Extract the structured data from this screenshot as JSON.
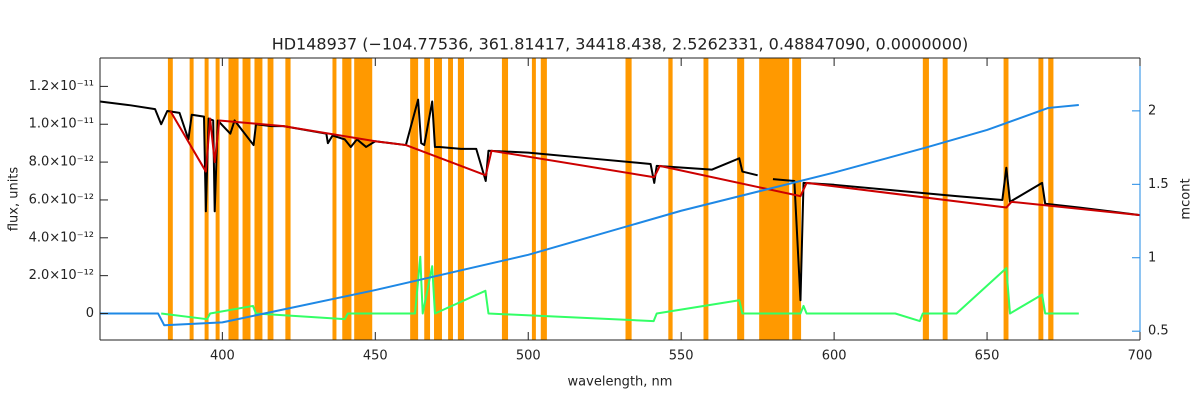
{
  "chart_data": {
    "type": "line",
    "title": "HD148937    (−104.77536, 361.81417, 34418.438, 2.5262331, 0.48847090, 0.0000000)",
    "x_label": "wavelength, nm",
    "y_label": "flux, units",
    "y2_label": "mcont",
    "xlim": [
      360,
      700
    ],
    "xticks": [
      400,
      450,
      500,
      550,
      600,
      650,
      700
    ],
    "ylim": [
      -1.4e-12,
      1.35e-11
    ],
    "yticks": [
      0,
      {
        "value": 2e-12,
        "label": "2.0×10⁻¹²"
      },
      {
        "value": 4e-12,
        "label": "4.0×10⁻¹²"
      },
      {
        "value": 6e-12,
        "label": "6.0×10⁻¹²"
      },
      {
        "value": 8e-12,
        "label": "8.0×10⁻¹²"
      },
      {
        "value": 1e-11,
        "label": "1.0×10⁻¹¹"
      },
      {
        "value": 1.2e-11,
        "label": "1.2×10⁻¹¹"
      }
    ],
    "y2lim": [
      0.44,
      2.36
    ],
    "y2ticks": [
      0.5,
      1.0,
      1.5,
      2.0
    ],
    "y2_color": "#1e88e5",
    "mask_color": "#ff9900",
    "mask_regions": [
      [
        382.2,
        383.8
      ],
      [
        389.3,
        390.6
      ],
      [
        394.2,
        395.5
      ],
      [
        397.8,
        399.1
      ],
      [
        402,
        405.3
      ],
      [
        406.6,
        409.2
      ],
      [
        410.5,
        413.1
      ],
      [
        414.8,
        416.7
      ],
      [
        420.6,
        422.3
      ],
      [
        436,
        437.3
      ],
      [
        439.2,
        442.2
      ],
      [
        443.1,
        449
      ],
      [
        461.4,
        464
      ],
      [
        466,
        467.9
      ],
      [
        469.2,
        471.8
      ],
      [
        473.8,
        475.4
      ],
      [
        477,
        479
      ],
      [
        491.4,
        493.4
      ],
      [
        501.2,
        502.5
      ],
      [
        504.1,
        506.1
      ],
      [
        531.8,
        533.8
      ],
      [
        545.8,
        547.2
      ],
      [
        557.3,
        558.9
      ],
      [
        568.3,
        570.6
      ],
      [
        575.5,
        585.3
      ],
      [
        586.3,
        589.2
      ],
      [
        629,
        631
      ],
      [
        635.5,
        637.1
      ],
      [
        655.4,
        657
      ],
      [
        666.8,
        668.4
      ],
      [
        670,
        671.7
      ]
    ],
    "series": [
      {
        "color": "#000000",
        "x": [
          360,
          370,
          378,
          380,
          382,
          386,
          388.9,
          390,
          394,
          394.6,
          395.5,
          397,
          397.5,
          398.5,
          402.6,
          404,
          410.2,
          411,
          416,
          420,
          427,
          434,
          434.5,
          436,
          440,
          442,
          444,
          447,
          450,
          455,
          460,
          464,
          465,
          466,
          468.6,
          469.5,
          471,
          478,
          483,
          486.1,
          487,
          500,
          520,
          540,
          541.2,
          542,
          560,
          569,
          570,
          575,
          576,
          580,
          587,
          589,
          590,
          600,
          620,
          640,
          655,
          656.3,
          657.5,
          668,
          669,
          680,
          690,
          700
        ],
        "values": [
          1.12e-11,
          1.1e-11,
          1.08e-11,
          1e-11,
          1.07e-11,
          1.06e-11,
          9.2e-12,
          1.05e-11,
          1.04e-11,
          5.4e-12,
          1.03e-11,
          1.02e-11,
          5.4e-12,
          1.02e-11,
          9.5e-12,
          1.02e-11,
          8.9e-12,
          1e-11,
          9.9e-12,
          9.9e-12,
          9.7e-12,
          9.5e-12,
          9e-12,
          9.4e-12,
          9.2e-12,
          8.8e-12,
          9.2e-12,
          8.8e-12,
          9.1e-12,
          9e-12,
          8.9e-12,
          1.13e-11,
          9e-12,
          8.9e-12,
          1.12e-11,
          8.8e-12,
          8.8e-12,
          8.7e-12,
          8.7e-12,
          7e-12,
          8.6e-12,
          8.5e-12,
          8.2e-12,
          7.9e-12,
          6.9e-12,
          7.8e-12,
          7.6e-12,
          8.2e-12,
          7.5e-12,
          7.3e-12,
          null,
          7.1e-12,
          7e-12,
          7e-13,
          6.9e-12,
          6.8e-12,
          6.5e-12,
          6.2e-12,
          6e-12,
          7.7e-12,
          5.9e-12,
          6.9e-12,
          5.8e-12,
          5.6e-12,
          5.4e-12,
          5.2e-12
        ]
      },
      {
        "color": "#cc0000",
        "x": [
          383,
          394.6,
          396,
          397.5,
          399,
          420,
          450,
          460,
          486.1,
          488,
          541.2,
          543,
          589,
          591,
          656.3,
          658,
          700
        ],
        "values": [
          1.07e-11,
          7.5e-12,
          1.03e-11,
          8e-12,
          1.02e-11,
          9.9e-12,
          9.1e-12,
          8.9e-12,
          7.3e-12,
          8.6e-12,
          7.2e-12,
          7.8e-12,
          6.2e-12,
          6.9e-12,
          5.6e-12,
          5.9e-12,
          5.2e-12
        ]
      },
      {
        "color": "#33ff66",
        "x": [
          380,
          395,
          396,
          410,
          411,
          440,
          441,
          463,
          464.7,
          465.5,
          468.6,
          469.5,
          486,
          487,
          541,
          542,
          569,
          570,
          589,
          590,
          591,
          620,
          628,
          629,
          640,
          656.3,
          657.5,
          668,
          669,
          680
        ],
        "values": [
          0,
          -3e-13,
          0,
          4e-13,
          0,
          -3e-13,
          0,
          0,
          3e-12,
          0,
          2.5e-12,
          0,
          1.2e-12,
          0,
          -4e-13,
          0,
          7e-13,
          0,
          0,
          4e-13,
          0,
          0,
          -4e-13,
          0,
          0,
          2.4e-12,
          0,
          1e-12,
          0,
          0
        ]
      },
      {
        "color": "#1e88e5",
        "axis": "y2",
        "x": [
          360,
          379,
          381,
          400,
          450,
          500,
          550,
          600,
          630,
          650,
          670,
          680
        ],
        "values": [
          0.62,
          0.62,
          0.54,
          0.56,
          0.78,
          1.02,
          1.32,
          1.58,
          1.75,
          1.87,
          2.02,
          2.04
        ]
      }
    ]
  }
}
